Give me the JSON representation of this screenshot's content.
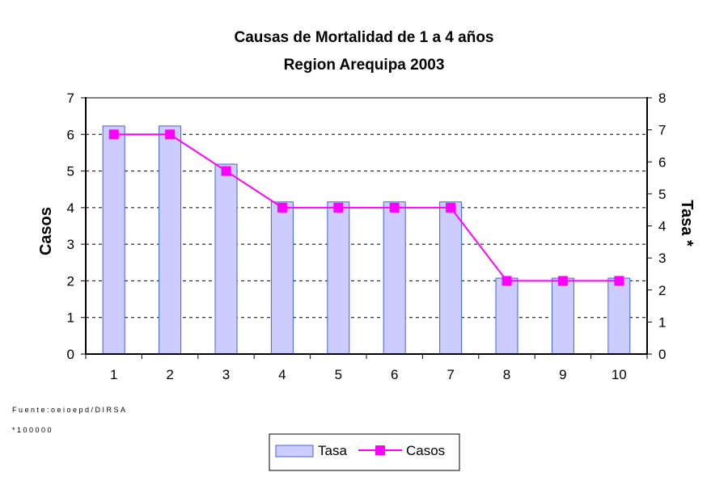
{
  "chart_data": {
    "type": "bar",
    "title": "Causas de Mortalidad de 1 a 4 años",
    "subtitle": "Region Arequipa 2003",
    "categories": [
      "1",
      "2",
      "3",
      "4",
      "5",
      "6",
      "7",
      "8",
      "9",
      "10"
    ],
    "ylabel": "Casos",
    "y2label": "Tasa *",
    "ylim": [
      0,
      7
    ],
    "y2lim": [
      0,
      8
    ],
    "yticks": [
      "0",
      "1",
      "2",
      "3",
      "4",
      "5",
      "6",
      "7"
    ],
    "y2ticks": [
      "0",
      "1",
      "2",
      "3",
      "4",
      "5",
      "6",
      "7",
      "8"
    ],
    "grid": true,
    "legend_position": "bottom",
    "series": [
      {
        "name": "Tasa",
        "type": "bar",
        "axis": "right",
        "color": "#ccccff",
        "edge": "#4466cc",
        "values": [
          7.12,
          7.12,
          5.93,
          4.75,
          4.75,
          4.75,
          4.75,
          2.37,
          2.37,
          2.37
        ]
      },
      {
        "name": "Casos",
        "type": "line",
        "axis": "left",
        "color": "#ff00ff",
        "values": [
          6,
          6,
          5,
          4,
          4,
          4,
          4,
          2,
          2,
          2
        ]
      }
    ],
    "footnotes": [
      "Fuente:oeioepd/DIRSA",
      "*100000"
    ]
  }
}
